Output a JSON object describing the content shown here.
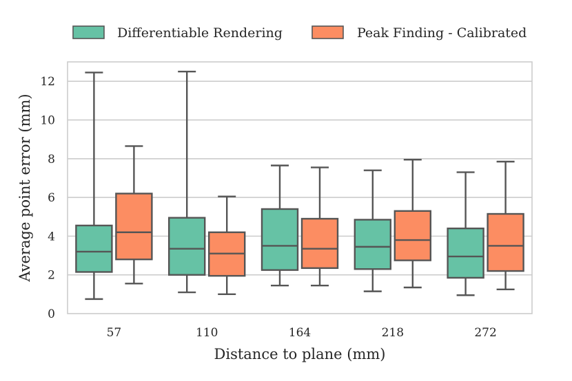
{
  "chart_data": {
    "type": "box",
    "title": "",
    "xlabel": "Distance to plane (mm)",
    "ylabel": "Average point error (mm)",
    "categories": [
      "57",
      "110",
      "164",
      "218",
      "272"
    ],
    "ylim": [
      0,
      13
    ],
    "yticks": [
      0,
      2,
      4,
      6,
      8,
      10,
      12
    ],
    "grid": true,
    "legend_position": "top-center",
    "series": [
      {
        "name": "Differentiable Rendering",
        "color": "#66c2a5",
        "boxes": [
          {
            "whisker_low": 0.75,
            "q1": 2.15,
            "median": 3.2,
            "q3": 4.55,
            "whisker_high": 12.45
          },
          {
            "whisker_low": 1.1,
            "q1": 2.0,
            "median": 3.35,
            "q3": 4.95,
            "whisker_high": 12.5
          },
          {
            "whisker_low": 1.45,
            "q1": 2.25,
            "median": 3.5,
            "q3": 5.4,
            "whisker_high": 7.65
          },
          {
            "whisker_low": 1.15,
            "q1": 2.3,
            "median": 3.45,
            "q3": 4.85,
            "whisker_high": 7.4
          },
          {
            "whisker_low": 0.95,
            "q1": 1.85,
            "median": 2.95,
            "q3": 4.4,
            "whisker_high": 7.3
          }
        ]
      },
      {
        "name": "Peak Finding - Calibrated",
        "color": "#fc8d62",
        "boxes": [
          {
            "whisker_low": 1.55,
            "q1": 2.8,
            "median": 4.2,
            "q3": 6.2,
            "whisker_high": 8.65
          },
          {
            "whisker_low": 1.0,
            "q1": 1.95,
            "median": 3.1,
            "q3": 4.2,
            "whisker_high": 6.05
          },
          {
            "whisker_low": 1.45,
            "q1": 2.35,
            "median": 3.35,
            "q3": 4.9,
            "whisker_high": 7.55
          },
          {
            "whisker_low": 1.35,
            "q1": 2.75,
            "median": 3.8,
            "q3": 5.3,
            "whisker_high": 7.95
          },
          {
            "whisker_low": 1.25,
            "q1": 2.2,
            "median": 3.5,
            "q3": 5.15,
            "whisker_high": 7.85
          }
        ]
      }
    ]
  }
}
